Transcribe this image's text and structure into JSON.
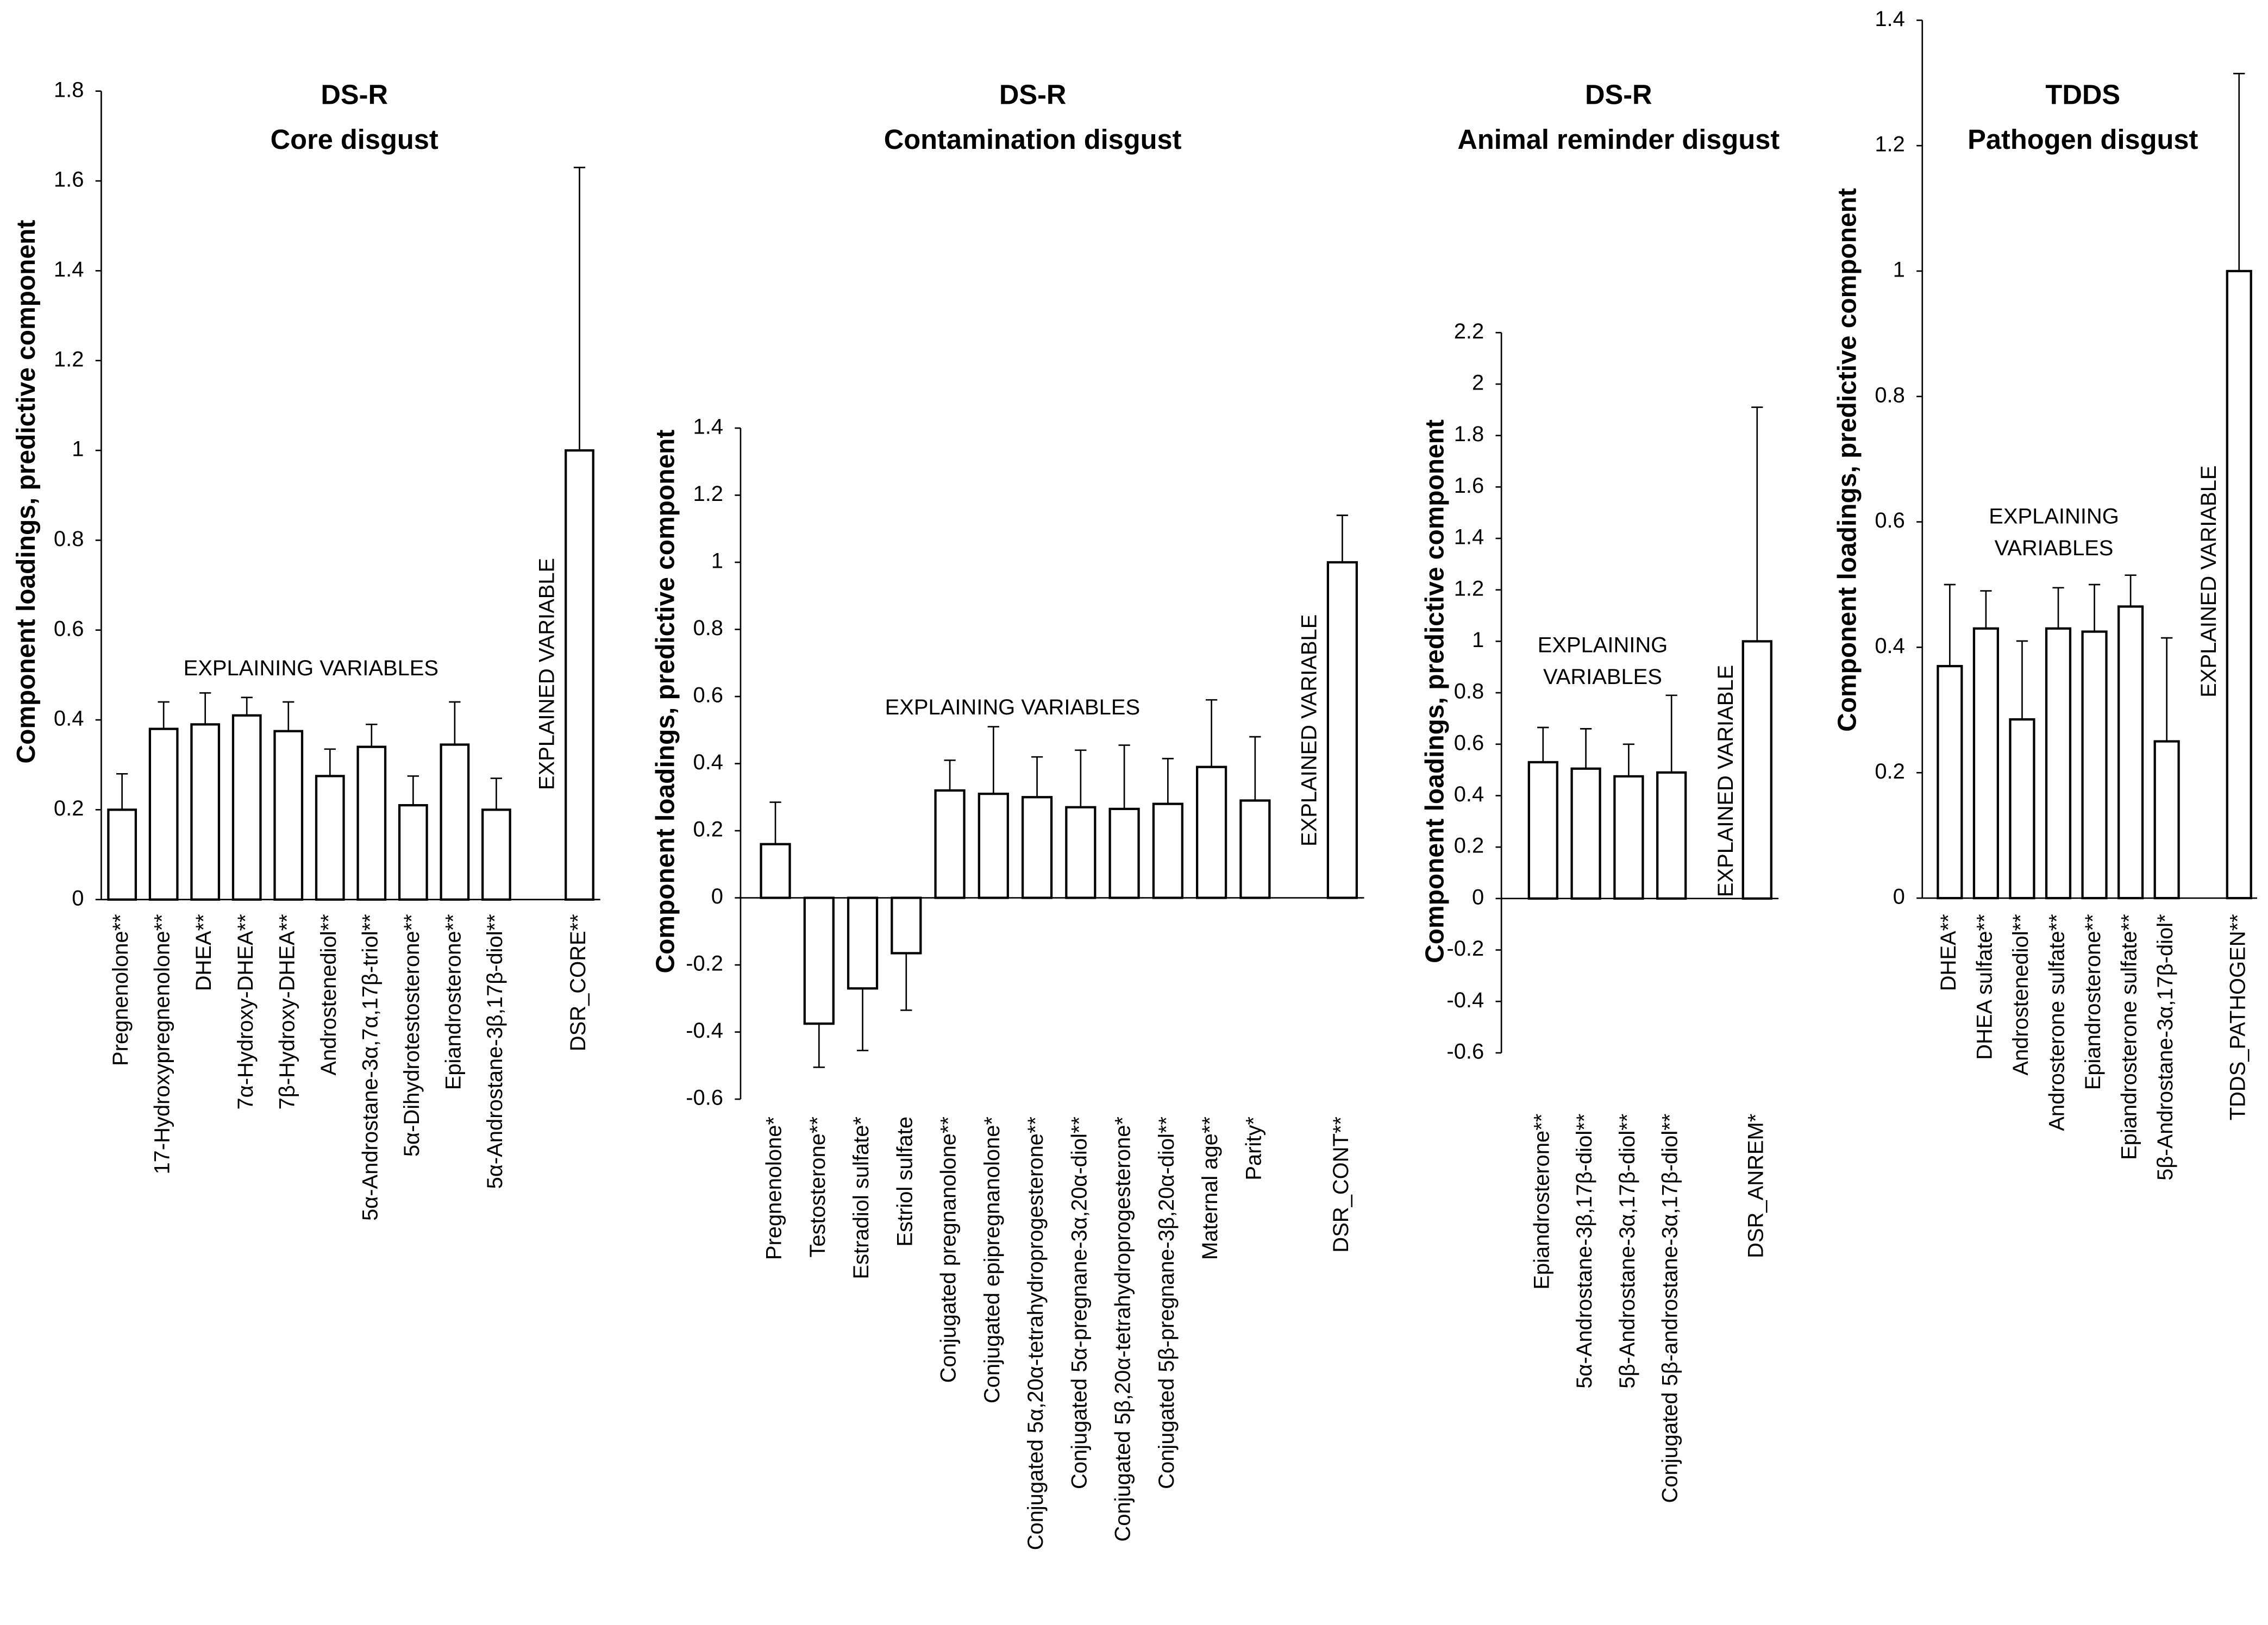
{
  "chart_data": [
    {
      "type": "bar",
      "title": "DS-R",
      "subtitle": "Core disgust",
      "y_label": "Component loadings, predictive component",
      "explaining_label": [
        "EXPLAINING VARIABLES"
      ],
      "explained_label": "EXPLAINED VARIABLE",
      "categories": [
        "Pregnenolone**",
        "17-Hydroxypregnenolone**",
        "DHEA**",
        "7α-Hydroxy-DHEA**",
        "7β-Hydroxy-DHEA**",
        "Androstenediol**",
        "5α-Androstane-3α,7α,17β-triol**",
        "5α-Dihydrotestosterone**",
        "Epiandrosterone**",
        "5α-Androstane-3β,17β-diol**",
        null,
        "DSR_CORE**"
      ],
      "values": [
        0.2,
        0.38,
        0.39,
        0.41,
        0.375,
        0.275,
        0.34,
        0.21,
        0.345,
        0.2,
        null,
        1.0
      ],
      "errors": [
        0.08,
        0.06,
        0.07,
        0.04,
        0.065,
        0.06,
        0.05,
        0.065,
        0.095,
        0.07,
        null,
        0.63
      ],
      "color": "#ffffff",
      "ylim": [
        0,
        1.8
      ],
      "yticks": [
        0,
        0.2,
        0.4,
        0.6,
        0.8,
        1,
        1.2,
        1.4,
        1.6,
        1.8
      ]
    },
    {
      "type": "bar",
      "title": "DS-R",
      "subtitle": "Contamination disgust",
      "y_label": "Component loadings, predictive component",
      "explaining_label": [
        "EXPLAINING VARIABLES"
      ],
      "explained_label": "EXPLAINED VARIABLE",
      "categories": [
        "Pregnenolone*",
        "Testosterone**",
        "Estradiol sulfate*",
        "Estriol sulfate",
        "Conjugated pregnanolone**",
        "Conjugated epipregnanolone*",
        "Conjugated 5α,20α-tetrahydroprogesterone**",
        "Conjugated 5α-pregnane-3α,20α-diol**",
        "Conjugated 5β,20α-tetrahydroprogesterone*",
        "Conjugated 5β-pregnane-3β,20α-diol**",
        "Maternal age**",
        "Parity*",
        null,
        "DSR_CONT**"
      ],
      "values": [
        0.16,
        -0.375,
        -0.27,
        -0.165,
        0.32,
        0.31,
        0.3,
        0.27,
        0.265,
        0.28,
        0.39,
        0.29,
        null,
        1.0
      ],
      "errors": [
        0.125,
        0.13,
        0.185,
        0.17,
        0.09,
        0.2,
        0.12,
        0.17,
        0.19,
        0.135,
        0.2,
        0.19,
        null,
        0.14
      ],
      "color": "#ffffff",
      "ylim": [
        -0.6,
        1.4
      ],
      "yticks": [
        -0.6,
        -0.4,
        -0.2,
        0,
        0.2,
        0.4,
        0.6,
        0.8,
        1,
        1.2,
        1.4
      ]
    },
    {
      "type": "bar",
      "title": "DS-R",
      "subtitle": "Animal reminder disgust",
      "y_label": "Component loadings, predictive component",
      "explaining_label": [
        "EXPLAINING",
        "VARIABLES"
      ],
      "explained_label": "EXPLAINED VARIABLE",
      "categories": [
        "Epiandrosterone**",
        "5α-Androstane-3β,17β-diol**",
        "5β-Androstane-3α,17β-diol**",
        "Conjugated 5β-androstane-3α,17β-diol**",
        null,
        "DSR_ANREM*"
      ],
      "values": [
        0.53,
        0.505,
        0.475,
        0.49,
        null,
        1.0
      ],
      "errors": [
        0.135,
        0.155,
        0.125,
        0.3,
        null,
        0.91
      ],
      "color": "#ffffff",
      "ylim": [
        -0.6,
        2.2
      ],
      "yticks": [
        -0.6,
        -0.4,
        -0.2,
        0,
        0.2,
        0.4,
        0.6,
        0.8,
        1,
        1.2,
        1.4,
        1.6,
        1.8,
        2,
        2.2
      ]
    },
    {
      "type": "bar",
      "title": "TDDS",
      "subtitle": "Pathogen disgust",
      "y_label": "Component loadings, predictive component",
      "explaining_label": [
        "EXPLAINING",
        "VARIABLES"
      ],
      "explained_label": "EXPLAINED VARIABLE",
      "categories": [
        "DHEA**",
        "DHEA sulfate**",
        "Androstenediol**",
        "Androsterone sulfate**",
        "Epiandrosterone**",
        "Epiandrosterone sulfate**",
        "5β-Androstane-3α,17β-diol*",
        null,
        "TDDS_PATHOGEN**"
      ],
      "values": [
        0.37,
        0.43,
        0.285,
        0.43,
        0.425,
        0.465,
        0.25,
        null,
        1.0
      ],
      "errors": [
        0.13,
        0.06,
        0.125,
        0.065,
        0.075,
        0.05,
        0.165,
        null,
        0.315
      ],
      "color": "#ffffff",
      "ylim": [
        0,
        1.4
      ],
      "yticks": [
        0,
        0.2,
        0.4,
        0.6,
        0.8,
        1,
        1.2,
        1.4
      ]
    }
  ]
}
